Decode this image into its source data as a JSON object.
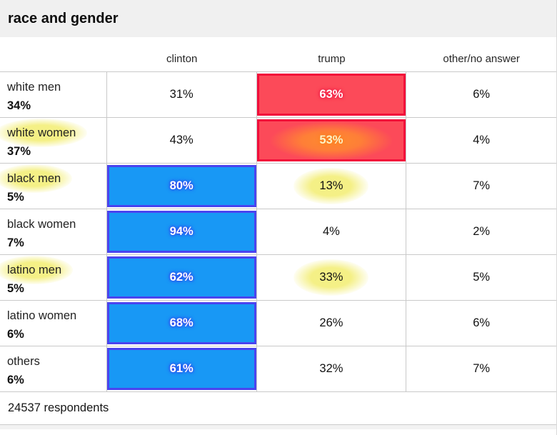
{
  "header": {
    "title": "race and gender"
  },
  "columns": [
    {
      "key": "clinton",
      "label": "clinton"
    },
    {
      "key": "trump",
      "label": "trump"
    },
    {
      "key": "other",
      "label": "other/no answer"
    }
  ],
  "rows": [
    {
      "label": "white men",
      "share": "34%",
      "label_highlight": false,
      "clinton": {
        "value": "31%",
        "style": "plain",
        "highlight": false
      },
      "trump": {
        "value": "63%",
        "style": "red",
        "highlight": false
      },
      "other": {
        "value": "6%",
        "style": "plain",
        "highlight": false
      }
    },
    {
      "label": "white women",
      "share": "37%",
      "label_highlight": true,
      "clinton": {
        "value": "43%",
        "style": "plain",
        "highlight": false
      },
      "trump": {
        "value": "53%",
        "style": "red",
        "highlight": true
      },
      "other": {
        "value": "4%",
        "style": "plain",
        "highlight": false
      }
    },
    {
      "label": "black men",
      "share": "5%",
      "label_highlight": true,
      "clinton": {
        "value": "80%",
        "style": "blue",
        "highlight": false
      },
      "trump": {
        "value": "13%",
        "style": "plain",
        "highlight": true
      },
      "other": {
        "value": "7%",
        "style": "plain",
        "highlight": false
      }
    },
    {
      "label": "black women",
      "share": "7%",
      "label_highlight": false,
      "clinton": {
        "value": "94%",
        "style": "blue",
        "highlight": false
      },
      "trump": {
        "value": "4%",
        "style": "plain",
        "highlight": false
      },
      "other": {
        "value": "2%",
        "style": "plain",
        "highlight": false
      }
    },
    {
      "label": "latino men",
      "share": "5%",
      "label_highlight": true,
      "clinton": {
        "value": "62%",
        "style": "blue",
        "highlight": false
      },
      "trump": {
        "value": "33%",
        "style": "plain",
        "highlight": true
      },
      "other": {
        "value": "5%",
        "style": "plain",
        "highlight": false
      }
    },
    {
      "label": "latino women",
      "share": "6%",
      "label_highlight": false,
      "clinton": {
        "value": "68%",
        "style": "blue",
        "highlight": false
      },
      "trump": {
        "value": "26%",
        "style": "plain",
        "highlight": false
      },
      "other": {
        "value": "6%",
        "style": "plain",
        "highlight": false
      }
    },
    {
      "label": "others",
      "share": "6%",
      "label_highlight": false,
      "clinton": {
        "value": "61%",
        "style": "blue",
        "highlight": false
      },
      "trump": {
        "value": "32%",
        "style": "plain",
        "highlight": false
      },
      "other": {
        "value": "7%",
        "style": "plain",
        "highlight": false
      }
    }
  ],
  "footer": {
    "respondents": "24537 respondents"
  },
  "colors": {
    "blue_fill": "#1898f5",
    "blue_border": "#4a44ef",
    "red_fill": "#fc4a59",
    "red_border": "#f20d3a",
    "highlight_yellow": "rgba(244,239,128,0.95)",
    "title_band_bg": "#f0f0f0"
  },
  "chart_data": {
    "type": "table",
    "title": "race and gender",
    "columns": [
      "clinton",
      "trump",
      "other/no answer"
    ],
    "rows": [
      {
        "group": "white men",
        "share_of_electorate": 34,
        "clinton": 31,
        "trump": 63,
        "other_no_answer": 6
      },
      {
        "group": "white women",
        "share_of_electorate": 37,
        "clinton": 43,
        "trump": 53,
        "other_no_answer": 4
      },
      {
        "group": "black men",
        "share_of_electorate": 5,
        "clinton": 80,
        "trump": 13,
        "other_no_answer": 7
      },
      {
        "group": "black women",
        "share_of_electorate": 7,
        "clinton": 94,
        "trump": 4,
        "other_no_answer": 2
      },
      {
        "group": "latino men",
        "share_of_electorate": 5,
        "clinton": 62,
        "trump": 33,
        "other_no_answer": 5
      },
      {
        "group": "latino women",
        "share_of_electorate": 6,
        "clinton": 68,
        "trump": 26,
        "other_no_answer": 6
      },
      {
        "group": "others",
        "share_of_electorate": 6,
        "clinton": 61,
        "trump": 32,
        "other_no_answer": 7
      }
    ],
    "winner_fill_rule": "clinton majorities filled blue, trump majorities filled red",
    "yellow_marker_on": [
      "white women",
      "black men",
      "latino men",
      "trump 53%",
      "trump 13%",
      "trump 33%"
    ],
    "footnote": "24537 respondents"
  }
}
